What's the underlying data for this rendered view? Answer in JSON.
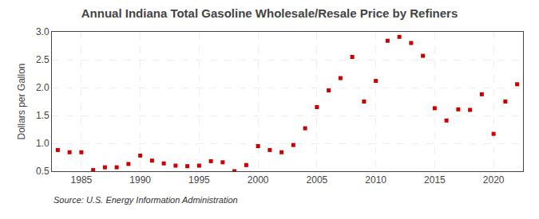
{
  "chart_data": {
    "type": "scatter",
    "title": "Annual Indiana Total Gasoline Wholesale/Resale Price by Refiners",
    "ylabel": "Dollars per Gallon",
    "annotations": [
      "Source: U.S. Energy Information Administration"
    ],
    "color": "#cc0000",
    "marker": "square",
    "grid": true,
    "xlim": [
      1982.5,
      2022.5
    ],
    "ylim": [
      0.5,
      3.0
    ],
    "xticks": [
      1985,
      1990,
      1995,
      2000,
      2005,
      2010,
      2015,
      2020
    ],
    "yticks": [
      0.5,
      {
        "value": 1.0,
        "label": "1.0"
      },
      1.5,
      {
        "value": 2.0,
        "label": "2.0"
      },
      2.5,
      {
        "value": 3.0,
        "label": "3.0"
      }
    ],
    "x": [
      1983,
      1984,
      1985,
      1986,
      1987,
      1988,
      1989,
      1990,
      1991,
      1992,
      1993,
      1994,
      1995,
      1996,
      1997,
      1998,
      1999,
      2000,
      2001,
      2002,
      2003,
      2004,
      2005,
      2006,
      2007,
      2008,
      2009,
      2010,
      2011,
      2012,
      2013,
      2014,
      2015,
      2016,
      2017,
      2018,
      2019,
      2020,
      2021,
      2022
    ],
    "values": [
      0.88,
      0.84,
      0.84,
      0.52,
      0.57,
      0.57,
      0.63,
      0.78,
      0.69,
      0.64,
      0.6,
      0.59,
      0.6,
      0.68,
      0.66,
      0.5,
      0.61,
      0.95,
      0.88,
      0.84,
      0.97,
      1.27,
      1.65,
      1.95,
      2.17,
      2.55,
      1.75,
      2.12,
      2.84,
      2.91,
      2.8,
      2.57,
      1.63,
      1.41,
      1.61,
      1.6,
      1.88,
      1.17,
      1.75,
      2.06
    ]
  }
}
